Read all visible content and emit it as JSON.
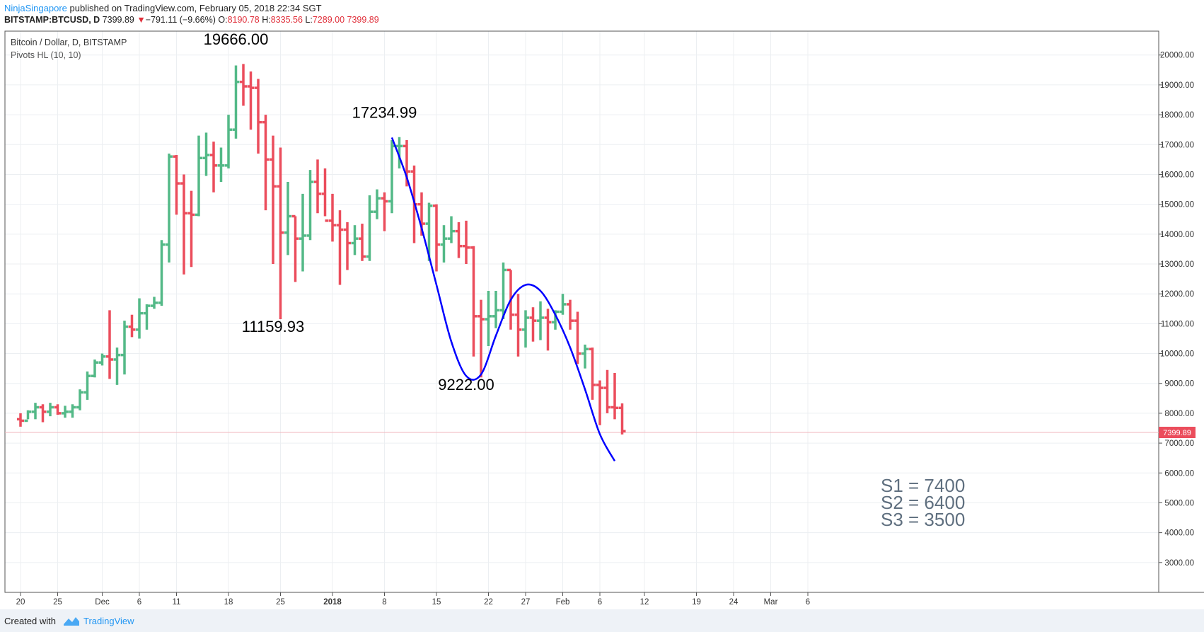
{
  "header": {
    "author": "NinjaSingapore",
    "published": "published on TradingView.com, February 05, 2018 22:34 SGT",
    "symbol": "BITSTAMP:BTCUSD, D",
    "last": "7399.89",
    "change": "−791.11 (−9.66%)",
    "o_label": "O:",
    "o_value": "8190.78",
    "h_label": "H:",
    "h_value": "8335.56",
    "l_label": "L:",
    "l_value": "7289.00",
    "c_value": "7399.89"
  },
  "legend": {
    "series": "Bitcoin / Dollar, D, BITSTAMP",
    "indicator": "Pivots HL (10, 10)"
  },
  "price_label": "7399.89",
  "colors": {
    "up": "#53b987",
    "down": "#eb4d5c",
    "curve": "#0000ff",
    "levels": "#5f6f7f"
  },
  "footer": {
    "created": "Created with",
    "brand": "TradingView"
  },
  "chart_data": {
    "type": "ohlc-bar",
    "y_ticks": [
      "20000.00",
      "19000.00",
      "18000.00",
      "17000.00",
      "16000.00",
      "15000.00",
      "14000.00",
      "13000.00",
      "12000.00",
      "11000.00",
      "10000.00",
      "9000.00",
      "8000.00",
      "7000.00",
      "6000.00",
      "5000.00",
      "4000.00",
      "3000.00"
    ],
    "y_range": [
      2000,
      20800
    ],
    "x_ticks": [
      {
        "label": "20",
        "day": 0
      },
      {
        "label": "25",
        "day": 5
      },
      {
        "label": "Dec",
        "day": 11
      },
      {
        "label": "6",
        "day": 16
      },
      {
        "label": "11",
        "day": 21
      },
      {
        "label": "18",
        "day": 28
      },
      {
        "label": "25",
        "day": 35
      },
      {
        "label": "2018",
        "day": 42
      },
      {
        "label": "8",
        "day": 49
      },
      {
        "label": "15",
        "day": 56
      },
      {
        "label": "22",
        "day": 63
      },
      {
        "label": "27",
        "day": 68
      },
      {
        "label": "Feb",
        "day": 73
      },
      {
        "label": "6",
        "day": 78
      },
      {
        "label": "12",
        "day": 84
      },
      {
        "label": "19",
        "day": 91
      },
      {
        "label": "24",
        "day": 96
      },
      {
        "label": "Mar",
        "day": 101
      },
      {
        "label": "6",
        "day": 106
      }
    ],
    "ohlc": [
      [
        7800,
        8000,
        7550,
        7750
      ],
      [
        7750,
        8100,
        7800,
        8050
      ],
      [
        8050,
        8350,
        7800,
        8200
      ],
      [
        8200,
        8300,
        7700,
        8050
      ],
      [
        8050,
        8350,
        7900,
        8200
      ],
      [
        8200,
        8300,
        7950,
        8000
      ],
      [
        8000,
        8250,
        7850,
        8050
      ],
      [
        8050,
        8300,
        7850,
        8200
      ],
      [
        8200,
        8800,
        8100,
        8700
      ],
      [
        8700,
        9400,
        8450,
        9250
      ],
      [
        9250,
        9800,
        9200,
        9700
      ],
      [
        9700,
        10000,
        9600,
        9900
      ],
      [
        9900,
        11450,
        9150,
        9800
      ],
      [
        9800,
        10200,
        8950,
        9950
      ],
      [
        9950,
        11100,
        9300,
        10900
      ],
      [
        10900,
        11300,
        10550,
        10800
      ],
      [
        10800,
        11850,
        10500,
        11350
      ],
      [
        11350,
        11650,
        10800,
        11600
      ],
      [
        11600,
        11900,
        11500,
        11700
      ],
      [
        11700,
        13800,
        11600,
        13650
      ],
      [
        13650,
        16700,
        13050,
        16600
      ],
      [
        16600,
        16650,
        14650,
        15700
      ],
      [
        15700,
        16000,
        12650,
        14700
      ],
      [
        14700,
        15450,
        12900,
        14650
      ],
      [
        14650,
        17300,
        14600,
        16550
      ],
      [
        16550,
        17400,
        15950,
        16650
      ],
      [
        16650,
        17100,
        15400,
        16300
      ],
      [
        16300,
        16900,
        15750,
        16300
      ],
      [
        16300,
        18000,
        16200,
        17500
      ],
      [
        17500,
        19650,
        17200,
        19100
      ],
      [
        19100,
        19700,
        18300,
        18950
      ],
      [
        18950,
        19450,
        17500,
        18900
      ],
      [
        18900,
        19200,
        16700,
        17750
      ],
      [
        17750,
        18000,
        14800,
        16500
      ],
      [
        16500,
        17300,
        13000,
        15600
      ],
      [
        15600,
        16900,
        11150,
        14050
      ],
      [
        14050,
        15750,
        13300,
        14600
      ],
      [
        14600,
        14600,
        12400,
        13850
      ],
      [
        13850,
        15350,
        12750,
        13950
      ],
      [
        13950,
        16150,
        13800,
        15750
      ],
      [
        15750,
        16500,
        14700,
        15350
      ],
      [
        15350,
        16200,
        14600,
        14450
      ],
      [
        14450,
        15350,
        13750,
        14300
      ],
      [
        14300,
        14800,
        12300,
        14150
      ],
      [
        14150,
        14400,
        12800,
        13700
      ],
      [
        13700,
        14300,
        13300,
        13850
      ],
      [
        13850,
        14350,
        13100,
        13250
      ],
      [
        13250,
        15300,
        13100,
        14750
      ],
      [
        14750,
        15500,
        14500,
        15200
      ],
      [
        15200,
        15400,
        14100,
        15100
      ],
      [
        15100,
        17150,
        14700,
        16950
      ],
      [
        16950,
        17250,
        16200,
        16950
      ],
      [
        16950,
        17150,
        15600,
        16100
      ],
      [
        16100,
        16300,
        13700,
        15000
      ],
      [
        15000,
        15400,
        13950,
        14350
      ],
      [
        14350,
        15050,
        13100,
        14950
      ],
      [
        14950,
        15000,
        12750,
        13650
      ],
      [
        13650,
        14300,
        13050,
        13850
      ],
      [
        13850,
        14600,
        13700,
        14100
      ],
      [
        14100,
        14400,
        13200,
        13600
      ],
      [
        13600,
        14450,
        13000,
        13550
      ],
      [
        13550,
        13600,
        9900,
        11250
      ],
      [
        11250,
        11800,
        9200,
        11150
      ],
      [
        11150,
        12100,
        10250,
        11250
      ],
      [
        11250,
        12100,
        10850,
        11450
      ],
      [
        11450,
        13050,
        11150,
        12800
      ],
      [
        12800,
        12800,
        10800,
        11300
      ],
      [
        11300,
        12000,
        9900,
        10800
      ],
      [
        10800,
        11450,
        10200,
        11200
      ],
      [
        11200,
        11550,
        10400,
        11100
      ],
      [
        11100,
        11750,
        10450,
        11200
      ],
      [
        11200,
        11500,
        10100,
        11050
      ],
      [
        11050,
        11450,
        10800,
        11400
      ],
      [
        11400,
        12000,
        11300,
        11650
      ],
      [
        11650,
        11800,
        10800,
        11100
      ],
      [
        11100,
        11400,
        9650,
        10000
      ],
      [
        10000,
        10300,
        9500,
        10150
      ],
      [
        10150,
        10200,
        8450,
        8950
      ],
      [
        8950,
        9100,
        7600,
        8850
      ],
      [
        8850,
        9450,
        8000,
        8200
      ],
      [
        8200,
        9350,
        7800,
        8180
      ],
      [
        8180,
        8330,
        7290,
        7400
      ]
    ],
    "annotations": [
      {
        "text": "19666.00",
        "day": 29,
        "price": 20350
      },
      {
        "text": "11159.93",
        "day": 34,
        "price": 10720
      },
      {
        "text": "17234.99",
        "day": 49,
        "price": 17900
      },
      {
        "text": "9222.00",
        "day": 60,
        "price": 8780
      }
    ],
    "curve": [
      [
        50,
        17234.99
      ],
      [
        52,
        15900
      ],
      [
        54,
        14200
      ],
      [
        56,
        12300
      ],
      [
        58,
        10400
      ],
      [
        60,
        9250
      ],
      [
        62,
        9300
      ],
      [
        64,
        10600
      ],
      [
        66,
        11800
      ],
      [
        68,
        12300
      ],
      [
        70,
        12100
      ],
      [
        72,
        11300
      ],
      [
        74,
        10200
      ],
      [
        76,
        8800
      ],
      [
        78,
        7300
      ],
      [
        80,
        6400
      ]
    ],
    "levels": [
      "S1 = 7400",
      "S2 = 6400",
      "S3 = 3500"
    ]
  }
}
